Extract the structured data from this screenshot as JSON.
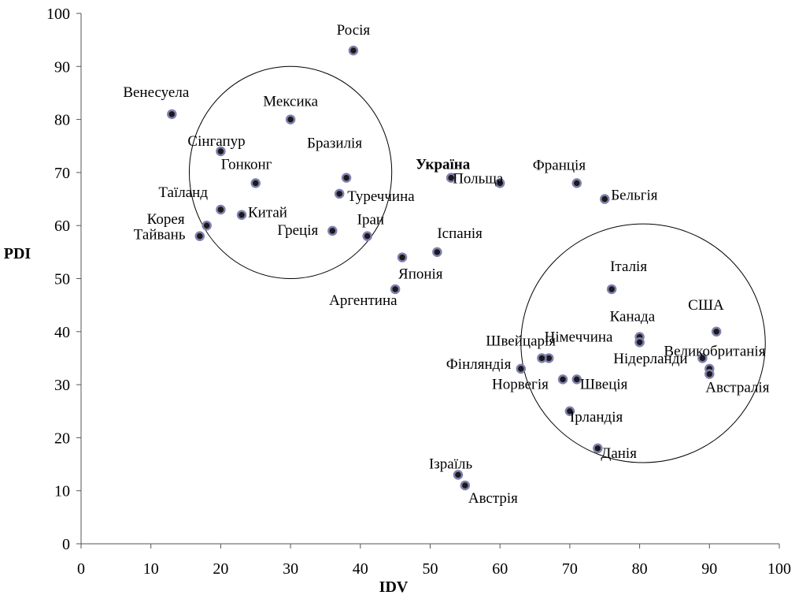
{
  "chart_data": {
    "type": "scatter",
    "xlabel": "IDV",
    "ylabel": "PDI",
    "xlim": [
      0,
      100
    ],
    "ylim": [
      0,
      100
    ],
    "x_ticks": [
      "0",
      "10",
      "20",
      "30",
      "40",
      "50",
      "60",
      "70",
      "80",
      "90",
      "100"
    ],
    "y_ticks": [
      "0",
      "10",
      "20",
      "30",
      "40",
      "50",
      "60",
      "70",
      "80",
      "90",
      "100"
    ],
    "grid": false,
    "marker_fill": "#1a1a1a",
    "marker_edge": "#8080b0",
    "points": [
      {
        "label": "Росія",
        "x": 39,
        "y": 93
      },
      {
        "label": "Венесуела",
        "x": 13,
        "y": 81
      },
      {
        "label": "Мексика",
        "x": 30,
        "y": 80
      },
      {
        "label": "Сінгапур",
        "x": 20,
        "y": 74
      },
      {
        "label": "Гонконг",
        "x": 25,
        "y": 68
      },
      {
        "label": "Бразилія",
        "x": 38,
        "y": 69
      },
      {
        "label": "Туреччина",
        "x": 37,
        "y": 66
      },
      {
        "label": "Україна",
        "x": 53,
        "y": 69,
        "bold": true
      },
      {
        "label": "Польща",
        "x": 60,
        "y": 68
      },
      {
        "label": "Франція",
        "x": 71,
        "y": 68
      },
      {
        "label": "Бельгія",
        "x": 75,
        "y": 65
      },
      {
        "label": "Таїланд",
        "x": 20,
        "y": 63
      },
      {
        "label": "Китай",
        "x": 23,
        "y": 62
      },
      {
        "label": "Корея",
        "x": 18,
        "y": 60
      },
      {
        "label": "Тайвань",
        "x": 17,
        "y": 58
      },
      {
        "label": "Греція",
        "x": 36,
        "y": 59
      },
      {
        "label": "Іран",
        "x": 41,
        "y": 58
      },
      {
        "label": "Іспанія",
        "x": 51,
        "y": 55
      },
      {
        "label": "Японія",
        "x": 46,
        "y": 54
      },
      {
        "label": "Аргентина",
        "x": 45,
        "y": 48
      },
      {
        "label": "Італія",
        "x": 76,
        "y": 48
      },
      {
        "label": "США",
        "x": 91,
        "y": 40
      },
      {
        "label": "Канада",
        "x": 80,
        "y": 39
      },
      {
        "label": "Німеччина",
        "x": 80,
        "y": 38
      },
      {
        "label": "Великобританія",
        "x": 89,
        "y": 35
      },
      {
        "label": "Нідерланди",
        "x": 90,
        "y": 33
      },
      {
        "label": "Швейцарія",
        "x": 67,
        "y": 35
      },
      {
        "label": "Фінляндія",
        "x": 63,
        "y": 33
      },
      {
        "label": "Норвегія",
        "x": 69,
        "y": 31
      },
      {
        "label": "Швеція",
        "x": 71,
        "y": 31
      },
      {
        "label": "Австралія",
        "x": 90,
        "y": 32
      },
      {
        "label": "Ірландія",
        "x": 70,
        "y": 25
      },
      {
        "label": "Данія",
        "x": 74,
        "y": 18
      },
      {
        "label": "Ізраїль",
        "x": 54,
        "y": 13
      },
      {
        "label": "Австрія",
        "x": 55,
        "y": 11
      }
    ],
    "extra_markers": [
      {
        "x": 66,
        "y": 35
      },
      {
        "x": 80,
        "y": 38
      }
    ],
    "clusters": [
      {
        "cx": 30,
        "cy": 70,
        "rx": 14.5,
        "ry": 20
      },
      {
        "cx": 80.5,
        "cy": 37.8,
        "rx": 17.5,
        "ry": 22.5
      }
    ]
  }
}
